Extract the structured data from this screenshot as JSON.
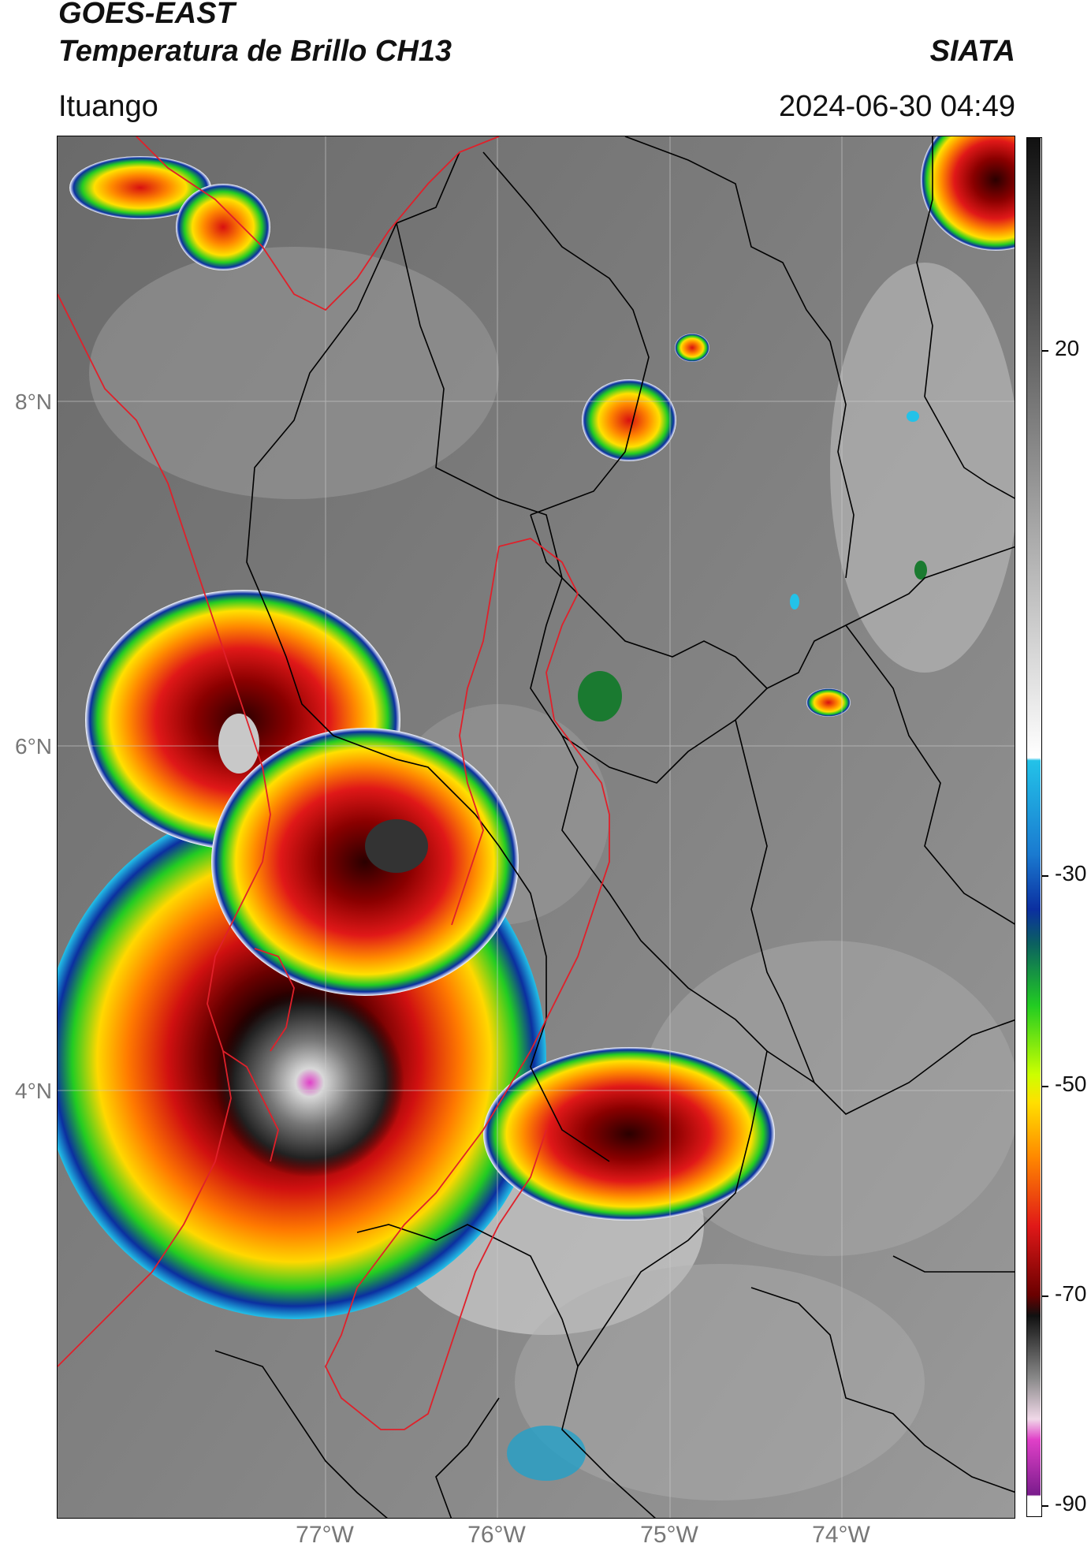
{
  "header": {
    "satellite": "GOES-EAST",
    "product": "Temperatura de Brillo CH13",
    "brand": "SIATA",
    "region": "Ituango",
    "datetime": "2024-06-30 04:49"
  },
  "map": {
    "latitude_labels": [
      "8°N",
      "6°N",
      "4°N"
    ],
    "longitude_labels": [
      "77°W",
      "76°W",
      "75°W",
      "74°W"
    ],
    "boundary_colors": {
      "national": "#000000",
      "highlight_region": "#e0202a"
    }
  },
  "colorbar": {
    "ticks": [
      "20",
      "-30",
      "-50",
      "-70",
      "-90"
    ],
    "colors": {
      "warm_gray_light": "#ffffff",
      "warm_gray_dark": "#111111",
      "cyan": "#23c2e8",
      "blue": "#0b2fa0",
      "green": "#22cc22",
      "yellow": "#ffe000",
      "orange": "#ff8800",
      "red": "#d81010",
      "dark_red": "#5a0000",
      "magenta": "#e040c8",
      "purple": "#7a1c8c"
    }
  }
}
